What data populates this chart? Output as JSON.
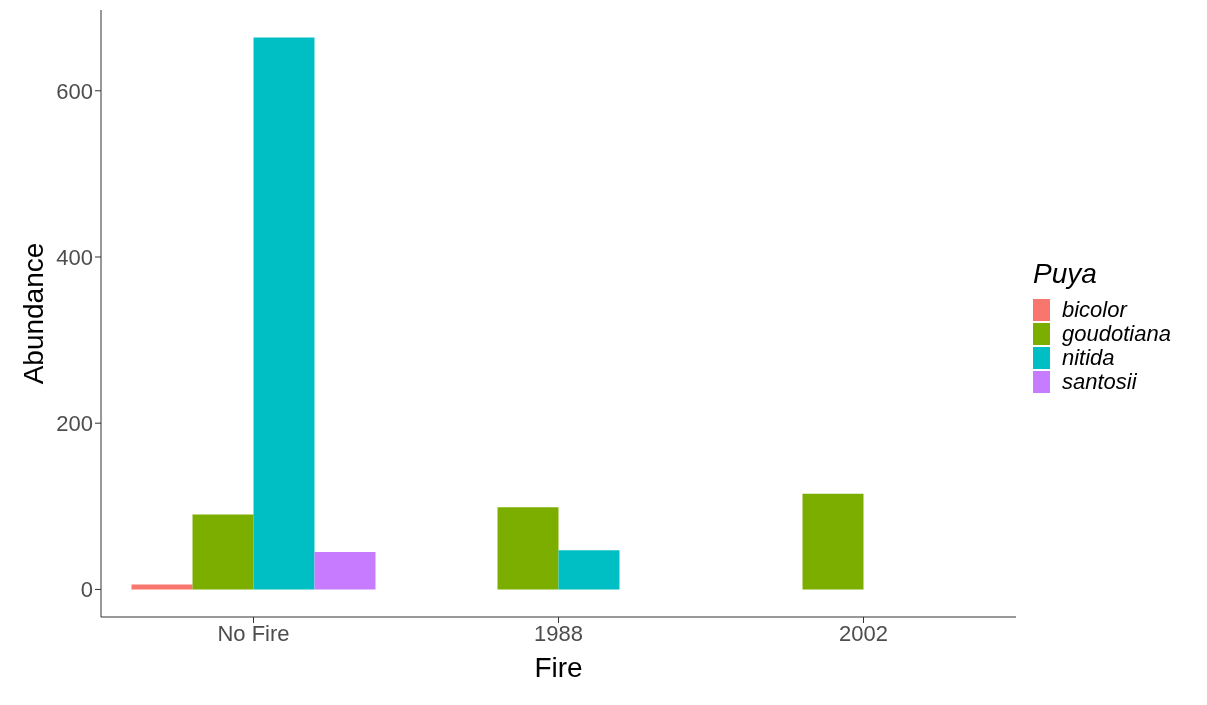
{
  "chart_data": {
    "type": "bar",
    "xlabel": "Fire",
    "ylabel": "Abundance",
    "legend_title": "Puya",
    "legend": "right",
    "grid": false,
    "categories": [
      "No Fire",
      "1988",
      "2002"
    ],
    "series": [
      {
        "name": "bicolor",
        "color": "#f8766d",
        "values": [
          6,
          0,
          0
        ]
      },
      {
        "name": "goudotiana",
        "color": "#7cae00",
        "values": [
          90,
          99,
          115
        ]
      },
      {
        "name": "nitida",
        "color": "#00bfc4",
        "values": [
          664,
          47,
          0
        ]
      },
      {
        "name": "santosii",
        "color": "#c77cff",
        "values": [
          45,
          0,
          0
        ]
      }
    ],
    "ylim": [
      -33.2,
      697.2
    ],
    "yticks": [
      0,
      200,
      400,
      600
    ]
  }
}
